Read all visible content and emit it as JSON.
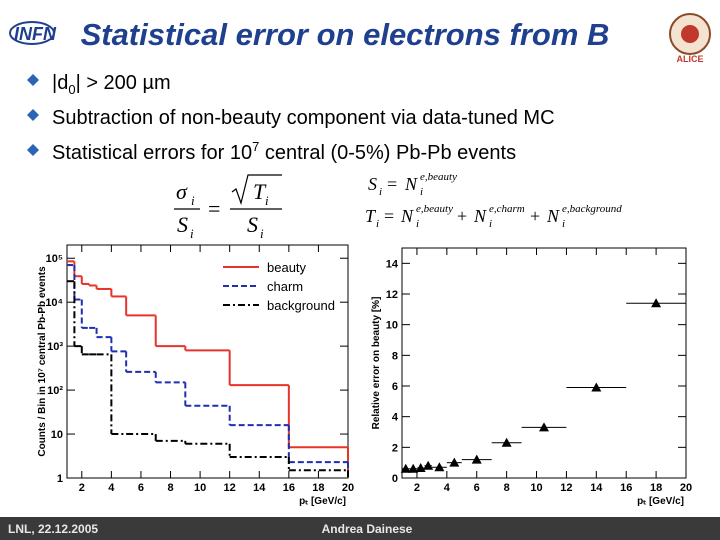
{
  "header": {
    "title": "Statistical error on electrons from B"
  },
  "logos": {
    "left": "INFN",
    "right": "ALICE"
  },
  "bullets": [
    [
      "|d",
      "0",
      "| > 200 µm"
    ],
    [
      "Subtraction of non-beauty component via data-tuned MC"
    ],
    [
      "Statistical errors for 10",
      "7",
      " central (0-5%) Pb-Pb events"
    ]
  ],
  "formulas": {
    "sigma": "σ",
    "S": "S",
    "T": "T",
    "N": "N",
    "i": "i",
    "equals": "=",
    "plus": "+",
    "beauty": "e,beauty",
    "charm": "e,charm",
    "background": "e,background"
  },
  "footer": {
    "left": "LNL, 22.12.2005",
    "center": "Andrea Dainese"
  },
  "chart_data": [
    {
      "type": "histogram",
      "bins": [
        1,
        1.5,
        2,
        2.5,
        3,
        4,
        5,
        7,
        9,
        12,
        16,
        20
      ],
      "series": [
        {
          "name": "beauty",
          "color": "#e8332a",
          "linestyle": "solid",
          "values": [
            85000,
            39000,
            26000,
            24000,
            20000,
            13500,
            5000,
            1000,
            800,
            130,
            5
          ]
        },
        {
          "name": "charm",
          "color": "#1f2fb0",
          "linestyle": "dashed",
          "values": [
            70000,
            11500,
            2600,
            2600,
            1600,
            760,
            260,
            150,
            44,
            16,
            2.3
          ]
        },
        {
          "name": "background",
          "color": "#000000",
          "linestyle": "dashdot",
          "values": [
            30000,
            1000,
            650,
            650,
            650,
            10,
            10,
            7,
            6,
            3,
            1.5
          ]
        }
      ],
      "xlim": [
        1,
        20
      ],
      "xticks": [
        2,
        4,
        6,
        8,
        10,
        12,
        14,
        16,
        18,
        20
      ],
      "ylim": [
        1,
        200000
      ],
      "log_y": true,
      "yticks": [
        1,
        10,
        {
          "value": 100,
          "label": "10²"
        },
        {
          "value": 1000,
          "label": "10³"
        },
        {
          "value": 10000,
          "label": "10⁴"
        },
        {
          "value": 100000,
          "label": "10⁵"
        }
      ],
      "xlabel": "pₜ [GeV/c]",
      "ylabel": "Counts / Bin in 10⁷ central Pb-Pb events",
      "legend": "upper right"
    },
    {
      "type": "scatter",
      "x": [
        1.25,
        1.75,
        2.25,
        2.75,
        3.5,
        4.5,
        6,
        8,
        10.5,
        14,
        18
      ],
      "xerr": [
        0.25,
        0.25,
        0.25,
        0.25,
        0.5,
        0.5,
        1,
        1,
        1.5,
        2,
        2
      ],
      "values": [
        0.6,
        0.6,
        0.65,
        0.8,
        0.7,
        1.0,
        1.2,
        2.3,
        3.3,
        5.9,
        11.4
      ],
      "color": "#000000",
      "xlim": [
        1,
        20
      ],
      "xticks": [
        2,
        4,
        6,
        8,
        10,
        12,
        14,
        16,
        18,
        20
      ],
      "ylim": [
        0,
        15
      ],
      "yticks": [
        0,
        2,
        4,
        6,
        8,
        10,
        12,
        14
      ],
      "xlabel": "pₜ [GeV/c]",
      "ylabel": "Relative error on beauty [%]"
    }
  ]
}
